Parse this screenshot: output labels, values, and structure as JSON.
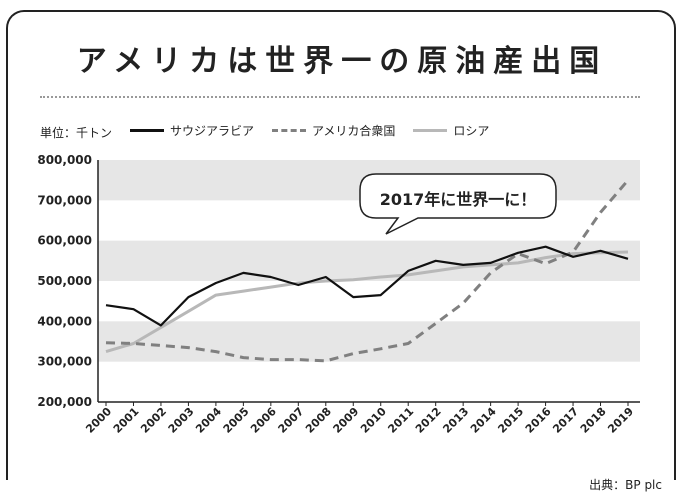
{
  "title": "アメリカは世界一の原油産出国",
  "unit_label": "単位：千トン",
  "source": "出典：BP plc",
  "callout": "2017年に世界一に！",
  "colors": {
    "usa": "#808080",
    "saudi": "#111111",
    "russia": "#b8b8b8",
    "band": "#e6e6e6"
  },
  "chart_data": {
    "type": "line",
    "title": "",
    "xlabel": "",
    "ylabel": "単位：千トン",
    "ylim": [
      200000,
      800000
    ],
    "yticks": [
      "200,000",
      "300,000",
      "400,000",
      "500,000",
      "600,000",
      "700,000",
      "800,000"
    ],
    "x": [
      "2000",
      "2001",
      "2002",
      "2003",
      "2004",
      "2005",
      "2006",
      "2007",
      "2008",
      "2009",
      "2010",
      "2011",
      "2012",
      "2013",
      "2014",
      "2015",
      "2016",
      "2017",
      "2018",
      "2019"
    ],
    "series": [
      {
        "name": "サウジアラビア",
        "style": "solid",
        "values": [
          440000,
          430000,
          390000,
          460000,
          495000,
          520000,
          510000,
          490000,
          510000,
          460000,
          465000,
          525000,
          550000,
          540000,
          545000,
          570000,
          585000,
          560000,
          575000,
          555000
        ]
      },
      {
        "name": "アメリカ合衆国",
        "style": "dashed",
        "values": [
          347000,
          345000,
          340000,
          335000,
          325000,
          310000,
          305000,
          305000,
          302000,
          320000,
          332000,
          345000,
          395000,
          445000,
          520000,
          568000,
          543000,
          572000,
          670000,
          750000
        ]
      },
      {
        "name": "ロシア",
        "style": "solid-light",
        "values": [
          325000,
          345000,
          385000,
          425000,
          465000,
          475000,
          485000,
          495000,
          500000,
          503000,
          510000,
          515000,
          525000,
          535000,
          540000,
          545000,
          558000,
          568000,
          570000,
          572000
        ]
      }
    ]
  }
}
